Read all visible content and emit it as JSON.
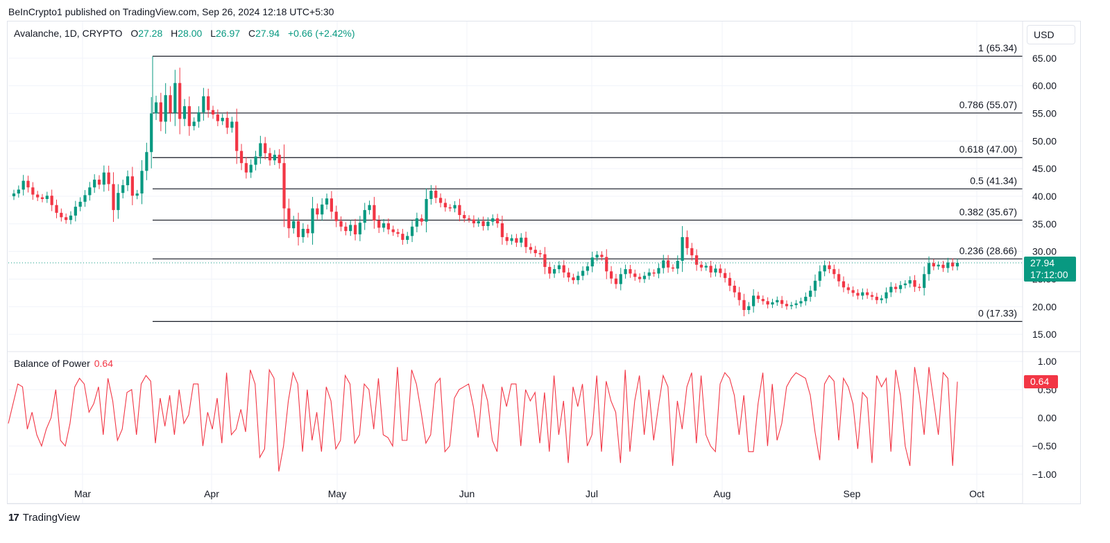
{
  "header": {
    "credit": "BeInCrypto1 published on TradingView.com, Sep 26, 2024 12:18 UTC+5:30"
  },
  "legend": {
    "symbol": "Avalanche, 1D, CRYPTO",
    "open_label": "O",
    "open": "27.28",
    "high_label": "H",
    "high": "28.00",
    "low_label": "L",
    "low": "26.97",
    "close_label": "C",
    "close": "27.94",
    "change": "+0.66 (+2.42%)"
  },
  "currency_button": "USD",
  "price_tag": {
    "price": "27.94",
    "countdown": "17:12:00"
  },
  "indicator": {
    "name": "Balance of Power",
    "value": "0.64",
    "tag": "0.64"
  },
  "footer": {
    "brand": "TradingView"
  },
  "colors": {
    "up": "#089981",
    "down": "#f23645",
    "grid": "#f0f3fa",
    "fib_line": "#131722",
    "bop_line": "#f23645"
  },
  "chart_data": [
    {
      "type": "candlestick",
      "title": "Avalanche, 1D, CRYPTO",
      "ylim": [
        12.5,
        69.0
      ],
      "yticks": [
        "15.00",
        "20.00",
        "25.00",
        "30.00",
        "35.00",
        "40.00",
        "45.00",
        "50.00",
        "55.00",
        "60.00",
        "65.00"
      ],
      "xticks": [
        "Mar",
        "Apr",
        "May",
        "Jun",
        "Jul",
        "Aug",
        "Sep",
        "Oct"
      ],
      "close_series": [
        40.5,
        41.2,
        42.8,
        41.6,
        40.3,
        39.8,
        39.5,
        40.1,
        38.4,
        37.0,
        36.2,
        35.7,
        36.5,
        38.1,
        39.0,
        40.2,
        41.6,
        43.0,
        42.1,
        44.3,
        42.2,
        37.5,
        40.6,
        42.0,
        43.6,
        40.1,
        40.5,
        44.6,
        48.0,
        55.0,
        57.0,
        53.5,
        58.3,
        55.1,
        60.5,
        54.0,
        56.3,
        52.7,
        53.5,
        55.2,
        58.1,
        55.6,
        54.8,
        53.6,
        54.2,
        52.4,
        53.5,
        48.2,
        46.0,
        44.3,
        45.7,
        47.2,
        49.6,
        47.8,
        46.5,
        47.5,
        46.0,
        37.8,
        34.2,
        35.5,
        32.6,
        34.1,
        33.3,
        37.8,
        36.7,
        38.5,
        39.6,
        37.2,
        35.5,
        34.5,
        33.7,
        34.8,
        33.1,
        35.2,
        37.5,
        38.4,
        35.6,
        34.3,
        35.1,
        34.0,
        33.5,
        33.2,
        32.1,
        32.8,
        34.5,
        36.0,
        35.4,
        39.5,
        41.0,
        39.7,
        38.8,
        38.0,
        37.8,
        38.4,
        36.6,
        36.0,
        35.8,
        35.1,
        35.5,
        34.6,
        35.4,
        36.0,
        35.1,
        32.6,
        31.9,
        32.4,
        31.6,
        32.5,
        30.8,
        30.3,
        29.7,
        29.5,
        27.2,
        26.0,
        26.8,
        27.5,
        26.2,
        25.3,
        24.8,
        25.6,
        26.5,
        27.3,
        28.9,
        29.4,
        29.0,
        26.4,
        25.1,
        24.1,
        25.9,
        26.8,
        26.0,
        25.4,
        25.0,
        25.6,
        26.2,
        26.0,
        27.0,
        28.4,
        27.1,
        26.9,
        28.3,
        32.6,
        30.6,
        29.3,
        27.6,
        27.1,
        27.4,
        26.2,
        26.9,
        26.1,
        25.2,
        23.8,
        22.6,
        21.2,
        19.4,
        20.1,
        22.0,
        21.4,
        21.0,
        20.4,
        20.8,
        21.2,
        20.5,
        20.1,
        20.3,
        20.6,
        21.0,
        21.8,
        22.9,
        24.7,
        26.4,
        27.5,
        26.8,
        25.9,
        24.6,
        23.5,
        23.0,
        22.5,
        22.0,
        22.6,
        22.1,
        21.8,
        21.2,
        21.5,
        22.6,
        23.6,
        23.2,
        23.9,
        24.2,
        24.8,
        23.6,
        23.4,
        25.9,
        27.9,
        27.3,
        27.6,
        27.0,
        28.0,
        27.3,
        27.94
      ],
      "fib_levels": [
        {
          "ratio": "1",
          "price": 65.34,
          "label": "1 (65.34)"
        },
        {
          "ratio": "0.786",
          "price": 55.07,
          "label": "0.786 (55.07)"
        },
        {
          "ratio": "0.618",
          "price": 47.0,
          "label": "0.618 (47.00)"
        },
        {
          "ratio": "0.5",
          "price": 41.34,
          "label": "0.5 (41.34)"
        },
        {
          "ratio": "0.382",
          "price": 35.67,
          "label": "0.382 (35.67)"
        },
        {
          "ratio": "0.236",
          "price": 28.66,
          "label": "0.236 (28.66)"
        },
        {
          "ratio": "0",
          "price": 17.33,
          "label": "0 (17.33)"
        }
      ],
      "last_price": 27.94
    },
    {
      "type": "line",
      "title": "Balance of Power",
      "ylim": [
        -1.1,
        1.1
      ],
      "yticks": [
        "1.00",
        "0.50",
        "0.00",
        "−0.50",
        "−1.00"
      ],
      "series": [
        {
          "name": "Balance of Power",
          "values": [
            -0.1,
            0.25,
            0.6,
            0.55,
            -0.2,
            0.1,
            -0.3,
            -0.5,
            -0.2,
            0.0,
            0.5,
            -0.4,
            -0.5,
            -0.1,
            0.55,
            0.7,
            0.6,
            0.1,
            0.25,
            0.55,
            -0.3,
            0.7,
            0.3,
            -0.4,
            -0.2,
            0.45,
            0.5,
            -0.3,
            0.6,
            0.75,
            0.65,
            -0.45,
            0.35,
            -0.15,
            0.4,
            -0.3,
            0.5,
            -0.1,
            0.05,
            0.6,
            0.6,
            -0.5,
            0.1,
            -0.2,
            0.35,
            -0.45,
            0.8,
            -0.3,
            -0.2,
            0.15,
            -0.25,
            0.85,
            0.6,
            -0.7,
            -0.55,
            0.85,
            0.7,
            -0.95,
            -0.5,
            0.3,
            0.8,
            0.6,
            -0.6,
            0.5,
            -0.4,
            0.1,
            -0.6,
            0.55,
            0.3,
            -0.55,
            -0.4,
            0.75,
            0.6,
            -0.45,
            -0.3,
            0.6,
            0.5,
            -0.2,
            0.7,
            -0.3,
            -0.35,
            -0.5,
            0.9,
            -0.4,
            -0.4,
            0.85,
            0.6,
            0.1,
            -0.45,
            -0.3,
            0.6,
            0.7,
            -0.6,
            -0.5,
            0.35,
            0.5,
            0.55,
            0.6,
            0.2,
            -0.35,
            0.6,
            0.3,
            -0.4,
            -0.6,
            0.55,
            0.2,
            0.6,
            0.6,
            -0.5,
            0.5,
            0.3,
            0.45,
            -0.45,
            0.45,
            -0.6,
            0.75,
            -0.3,
            0.3,
            -0.8,
            0.55,
            0.2,
            0.6,
            -0.5,
            -0.3,
            0.75,
            -0.6,
            0.65,
            0.3,
            0.1,
            -0.8,
            0.85,
            -0.6,
            0.3,
            0.75,
            -0.3,
            0.5,
            -0.4,
            0.2,
            0.75,
            0.55,
            -0.85,
            0.3,
            -0.2,
            0.55,
            0.8,
            -0.45,
            0.75,
            -0.3,
            -0.5,
            -0.6,
            0.6,
            0.8,
            0.7,
            0.4,
            -0.3,
            0.4,
            -0.6,
            -0.6,
            0.25,
            0.8,
            -0.5,
            0.6,
            -0.4,
            -0.1,
            0.55,
            0.7,
            0.8,
            0.75,
            0.7,
            0.4,
            -0.25,
            -0.75,
            0.6,
            0.75,
            0.65,
            -0.4,
            0.7,
            0.55,
            0.25,
            -0.55,
            0.45,
            0.35,
            -0.8,
            0.75,
            0.55,
            0.7,
            -0.6,
            0.85,
            0.4,
            -0.5,
            -0.85,
            0.9,
            0.4,
            -0.3,
            0.9,
            0.3,
            -0.3,
            0.8,
            0.7,
            -0.85,
            0.64
          ]
        }
      ]
    }
  ]
}
